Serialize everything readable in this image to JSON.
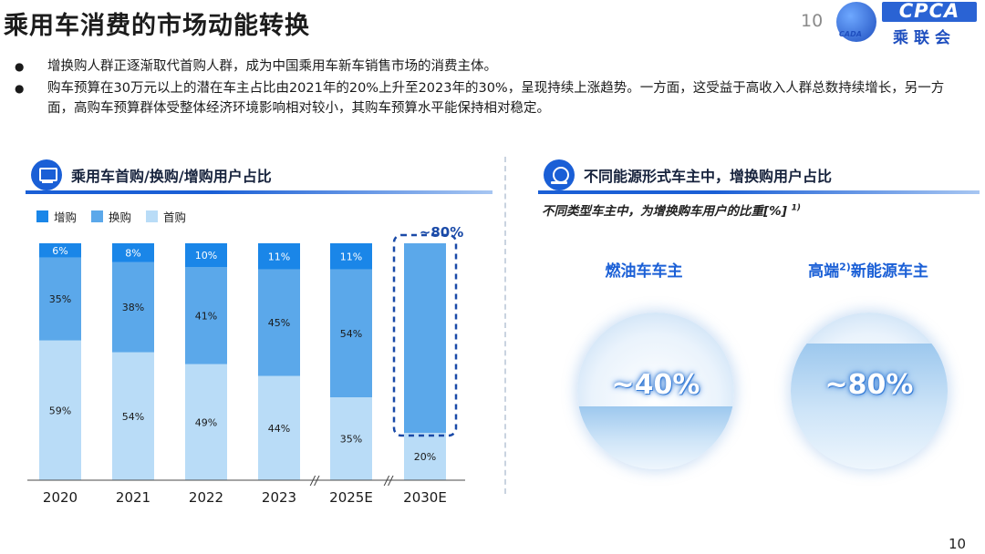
{
  "page": {
    "title": "乘用车消费的市场动能转换",
    "page_number_top": "10",
    "page_number_bottom": "10",
    "logo": {
      "en": "CPCA",
      "cn": "乘联会",
      "ball_text": "CADA"
    },
    "bullets": [
      "增换购人群正逐渐取代首购人群，成为中国乘用车新车销售市场的消费主体。",
      "购车预算在30万元以上的潜在车主占比由2021年的20%上升至2023年的30%，呈现持续上涨趋势。一方面，这受益于高收入人群总数持续增长，另一方面，高购车预算群体受整体经济环境影响相对较小，其购车预算水平能保持相对稳定。"
    ]
  },
  "left_panel": {
    "title": "乘用车首购/换购/增购用户占比"
  },
  "right_panel": {
    "title": "不同能源形式车主中，增换购用户占比",
    "subtitle": "不同类型车主中，为增换购车用户的比重[%]",
    "subtitle_note": "1)",
    "bubbles": [
      {
        "label": "燃油车车主",
        "label_sup": "",
        "value": "~40%",
        "fill": 0.4
      },
      {
        "label_pre": "高端",
        "label_sup": "2)",
        "label": "新能源车主",
        "value": "~80%",
        "fill": 0.8
      }
    ]
  },
  "chart_data": {
    "type": "bar",
    "stacked": true,
    "categories": [
      "2020",
      "2021",
      "2022",
      "2023",
      "2025E",
      "2030E"
    ],
    "series": [
      {
        "name": "首购",
        "color": "#b9dcf7",
        "values": [
          59,
          54,
          49,
          44,
          35,
          20
        ],
        "labels": [
          "59%",
          "54%",
          "49%",
          "44%",
          "35%",
          "20%"
        ]
      },
      {
        "name": "换购",
        "color": "#5ba8ea",
        "values": [
          35,
          38,
          41,
          45,
          54,
          80
        ],
        "labels": [
          "35%",
          "38%",
          "41%",
          "45%",
          "54%",
          ""
        ]
      },
      {
        "name": "增购",
        "color": "#1a86e8",
        "values": [
          6,
          8,
          10,
          11,
          11,
          0
        ],
        "labels": [
          "6%",
          "8%",
          "10%",
          "11%",
          "11%",
          ""
        ]
      }
    ],
    "legend_order": [
      "增购",
      "换购",
      "首购"
    ],
    "annotation": {
      "category": "2030E",
      "text": "~80%"
    },
    "axis_breaks_before": [
      "2025E",
      "2030E"
    ],
    "break_mark": "//",
    "ylim": [
      0,
      100
    ]
  }
}
